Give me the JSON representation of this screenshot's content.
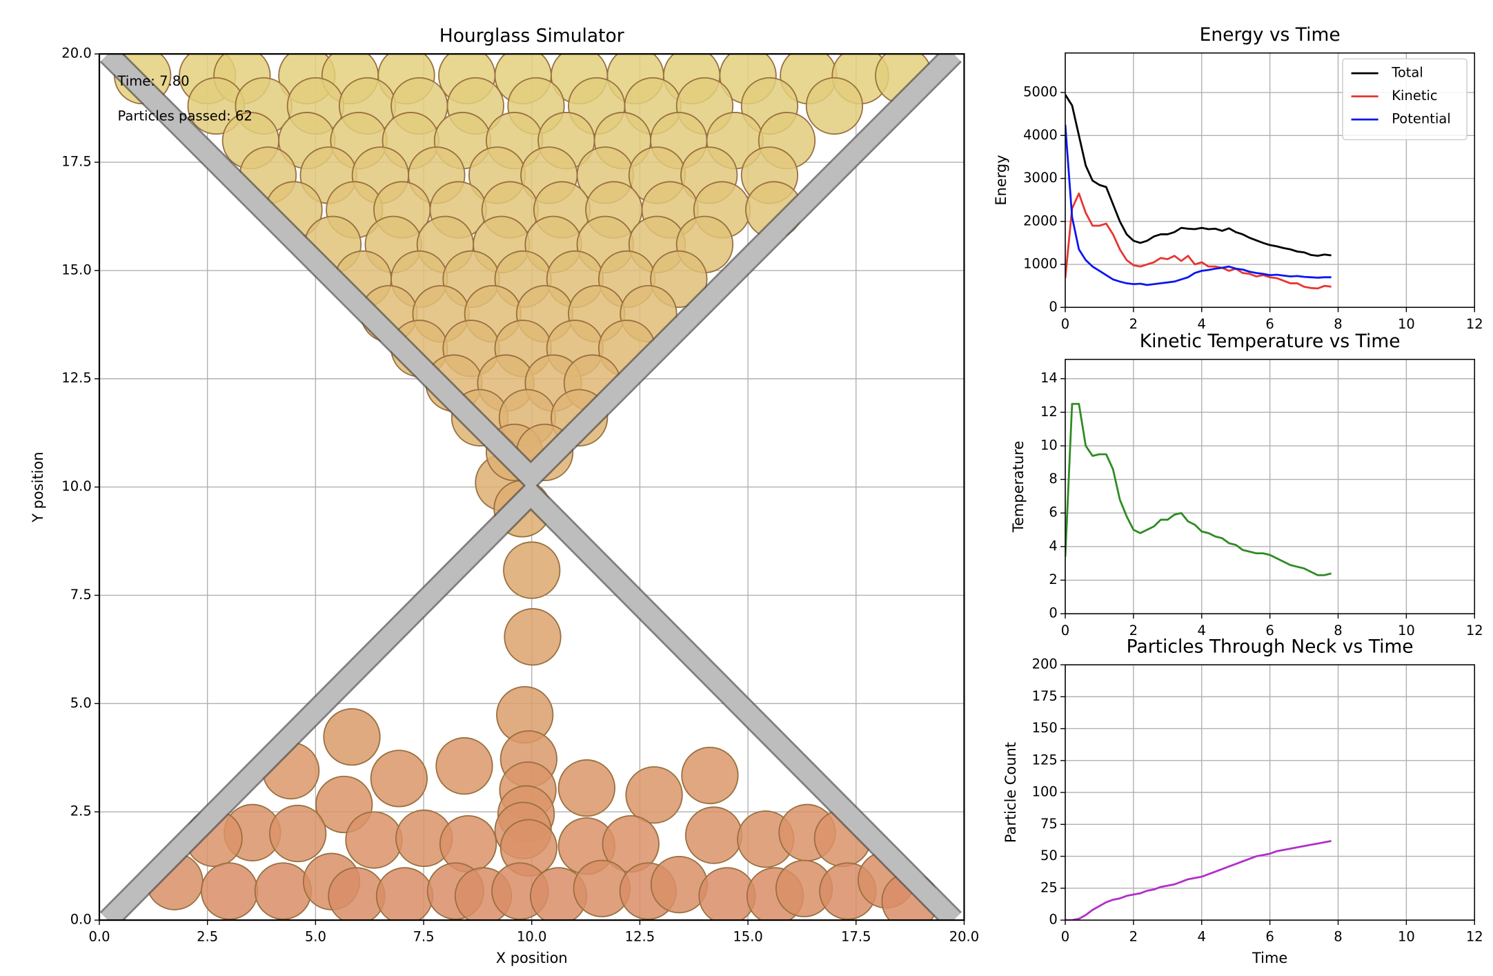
{
  "chart_data": [
    {
      "type": "scatter",
      "title": "Hourglass Simulator",
      "xlabel": "X position",
      "ylabel": "Y position",
      "annotations": [
        "Time: 7.80",
        "Particles passed: 62"
      ],
      "xlim": [
        0,
        20
      ],
      "ylim": [
        0,
        20
      ],
      "xticks": [
        {
          "value": 0,
          "label": "0.0"
        },
        2.5,
        {
          "value": 5,
          "label": "5.0"
        },
        7.5,
        {
          "value": 10,
          "label": "10.0"
        },
        12.5,
        {
          "value": 15,
          "label": "15.0"
        },
        17.5,
        {
          "value": 20,
          "label": "20.0"
        }
      ],
      "yticks": [
        {
          "value": 0,
          "label": "0.0"
        },
        2.5,
        {
          "value": 5,
          "label": "5.0"
        },
        7.5,
        {
          "value": 10,
          "label": "10.0"
        },
        12.5,
        {
          "value": 15,
          "label": "15.0"
        },
        17.5,
        {
          "value": 20,
          "label": "20.0"
        }
      ],
      "grid": true,
      "marker_radius": 0.65,
      "colormap": [
        "#d98c66",
        "#e3d27e"
      ],
      "edgecolor": "#9a7040",
      "x": [
        9.35,
        9.78,
        10.0,
        10.02,
        9.84,
        9.93,
        9.91,
        9.87,
        9.8,
        9.93,
        5.84,
        4.43,
        6.93,
        8.44,
        14.12,
        12.83,
        11.27,
        5.66,
        3.54,
        4.59,
        6.35,
        7.51,
        8.53,
        11.27,
        12.29,
        14.21,
        15.41,
        16.37,
        17.19,
        2.65,
        1.74,
        3.01,
        4.25,
        5.37,
        5.95,
        7.06,
        8.24,
        8.88,
        9.73,
        10.62,
        11.62,
        12.69,
        13.41,
        14.52,
        15.63,
        16.3,
        17.31,
        18.2,
        18.75,
        1.0,
        2.5,
        3.3,
        4.8,
        5.8,
        7.1,
        8.5,
        9.8,
        11.1,
        12.4,
        13.7,
        15.0,
        16.4,
        17.6,
        18.6,
        2.7,
        3.8,
        5.0,
        6.2,
        7.4,
        8.7,
        10.1,
        11.5,
        12.8,
        14.0,
        15.5,
        17.0,
        3.5,
        4.8,
        6.0,
        7.2,
        8.4,
        9.6,
        10.8,
        12.1,
        13.4,
        14.7,
        15.9,
        3.9,
        5.3,
        6.5,
        7.8,
        9.2,
        10.4,
        11.7,
        12.9,
        14.1,
        15.5,
        4.5,
        5.9,
        7.0,
        8.3,
        9.5,
        10.7,
        11.9,
        13.2,
        14.4,
        15.6,
        5.4,
        6.8,
        8.0,
        9.3,
        10.5,
        11.7,
        12.9,
        14.0,
        6.1,
        7.4,
        8.6,
        9.8,
        11.0,
        12.2,
        13.4,
        6.7,
        7.9,
        9.1,
        10.3,
        11.5,
        12.7,
        7.4,
        8.6,
        9.8,
        11.0,
        12.2,
        8.2,
        9.4,
        10.5,
        11.4,
        8.8,
        9.9,
        11.1,
        9.6,
        10.3
      ],
      "values": [
        10.1,
        9.5,
        8.08,
        6.54,
        4.74,
        3.72,
        3.0,
        2.45,
        2.07,
        1.67,
        4.23,
        3.45,
        3.27,
        3.56,
        3.34,
        2.89,
        3.05,
        2.67,
        2.02,
        2.0,
        1.85,
        1.89,
        1.76,
        1.71,
        1.76,
        1.96,
        1.87,
        2.02,
        1.89,
        1.89,
        0.89,
        0.67,
        0.67,
        0.89,
        0.56,
        0.56,
        0.67,
        0.56,
        0.67,
        0.56,
        0.73,
        0.67,
        0.82,
        0.56,
        0.56,
        0.73,
        0.67,
        0.93,
        0.44,
        19.5,
        19.5,
        19.5,
        19.5,
        19.5,
        19.5,
        19.5,
        19.5,
        19.5,
        19.5,
        19.5,
        19.5,
        19.5,
        19.5,
        19.5,
        18.8,
        18.8,
        18.8,
        18.8,
        18.8,
        18.8,
        18.8,
        18.8,
        18.8,
        18.8,
        18.8,
        18.8,
        18.0,
        18.0,
        18.0,
        18.0,
        18.0,
        18.0,
        18.0,
        18.0,
        18.0,
        18.0,
        18.0,
        17.2,
        17.2,
        17.2,
        17.2,
        17.2,
        17.2,
        17.2,
        17.2,
        17.2,
        17.2,
        16.4,
        16.4,
        16.4,
        16.4,
        16.4,
        16.4,
        16.4,
        16.4,
        16.4,
        16.4,
        15.6,
        15.6,
        15.6,
        15.6,
        15.6,
        15.6,
        15.6,
        15.6,
        14.8,
        14.8,
        14.8,
        14.8,
        14.8,
        14.8,
        14.8,
        14.0,
        14.0,
        14.0,
        14.0,
        14.0,
        14.0,
        13.2,
        13.2,
        13.2,
        13.2,
        13.2,
        12.4,
        12.4,
        12.4,
        12.4,
        11.6,
        11.6,
        11.6,
        10.8,
        10.8
      ]
    },
    {
      "type": "line",
      "title": "Energy vs Time",
      "ylabel": "Energy",
      "xlim": [
        0,
        12
      ],
      "ylim": [
        0,
        5920
      ],
      "xticks": [
        0,
        2,
        4,
        6,
        8,
        10,
        12
      ],
      "yticks": [
        0,
        1000,
        2000,
        3000,
        4000,
        5000
      ],
      "grid": true,
      "legend": "upper right",
      "x": [
        0,
        0.2,
        0.4,
        0.6,
        0.8,
        1,
        1.2,
        1.4,
        1.6,
        1.8,
        2,
        2.2,
        2.4,
        2.6,
        2.8,
        3,
        3.2,
        3.4,
        3.6,
        3.8,
        4,
        4.2,
        4.4,
        4.6,
        4.8,
        5,
        5.2,
        5.4,
        5.6,
        5.8,
        6,
        6.2,
        6.4,
        6.6,
        6.8,
        7,
        7.2,
        7.4,
        7.6,
        7.8
      ],
      "series": [
        {
          "name": "Total",
          "color": "#000000",
          "values": [
            4950,
            4700,
            4000,
            3300,
            2950,
            2850,
            2800,
            2400,
            2000,
            1700,
            1550,
            1500,
            1550,
            1650,
            1700,
            1700,
            1750,
            1850,
            1830,
            1820,
            1850,
            1820,
            1830,
            1780,
            1840,
            1750,
            1700,
            1620,
            1560,
            1500,
            1450,
            1420,
            1380,
            1350,
            1300,
            1280,
            1220,
            1200,
            1230,
            1210
          ]
        },
        {
          "name": "Kinetic",
          "color": "#e8352f",
          "values": [
            680,
            2300,
            2650,
            2200,
            1900,
            1900,
            1950,
            1700,
            1350,
            1100,
            980,
            950,
            1000,
            1050,
            1150,
            1120,
            1200,
            1080,
            1200,
            1000,
            1050,
            950,
            950,
            920,
            850,
            900,
            800,
            780,
            720,
            750,
            700,
            680,
            620,
            560,
            560,
            480,
            450,
            440,
            500,
            480
          ]
        },
        {
          "name": "Potential",
          "color": "#0a16f0",
          "values": [
            4250,
            2100,
            1350,
            1100,
            950,
            850,
            750,
            650,
            600,
            560,
            540,
            550,
            520,
            540,
            560,
            580,
            600,
            650,
            700,
            800,
            850,
            870,
            900,
            920,
            950,
            900,
            880,
            830,
            800,
            780,
            750,
            760,
            740,
            720,
            730,
            710,
            700,
            690,
            700,
            700
          ]
        }
      ]
    },
    {
      "type": "line",
      "title": "Kinetic Temperature vs Time",
      "ylabel": "Temperature",
      "xlim": [
        0,
        12
      ],
      "ylim": [
        0,
        15.15
      ],
      "xticks": [
        0,
        2,
        4,
        6,
        8,
        10,
        12
      ],
      "yticks": [
        0,
        2,
        4,
        6,
        8,
        10,
        12,
        14
      ],
      "grid": true,
      "x": [
        0,
        0.2,
        0.4,
        0.6,
        0.8,
        1,
        1.2,
        1.4,
        1.6,
        1.8,
        2,
        2.2,
        2.4,
        2.6,
        2.8,
        3,
        3.2,
        3.4,
        3.6,
        3.8,
        4,
        4.2,
        4.4,
        4.6,
        4.8,
        5,
        5.2,
        5.4,
        5.6,
        5.8,
        6,
        6.2,
        6.4,
        6.6,
        6.8,
        7,
        7.2,
        7.4,
        7.6,
        7.8
      ],
      "series": [
        {
          "color": "#2e8b22",
          "values": [
            3.4,
            12.5,
            12.5,
            10.0,
            9.4,
            9.5,
            9.5,
            8.6,
            6.8,
            5.8,
            5.0,
            4.8,
            5.0,
            5.2,
            5.6,
            5.6,
            5.9,
            6.0,
            5.5,
            5.3,
            4.9,
            4.8,
            4.6,
            4.5,
            4.2,
            4.1,
            3.8,
            3.7,
            3.6,
            3.6,
            3.5,
            3.3,
            3.1,
            2.9,
            2.8,
            2.7,
            2.5,
            2.3,
            2.3,
            2.4
          ]
        }
      ]
    },
    {
      "type": "line",
      "title": "Particles Through Neck vs Time",
      "xlabel": "Time",
      "ylabel": "Particle Count",
      "xlim": [
        0,
        12
      ],
      "ylim": [
        0,
        200
      ],
      "xticks": [
        0,
        2,
        4,
        6,
        8,
        10,
        12
      ],
      "yticks": [
        0,
        25,
        50,
        75,
        100,
        125,
        150,
        175,
        200
      ],
      "grid": true,
      "x": [
        0,
        0.2,
        0.4,
        0.6,
        0.8,
        1,
        1.2,
        1.4,
        1.6,
        1.8,
        2,
        2.2,
        2.4,
        2.6,
        2.8,
        3,
        3.2,
        3.4,
        3.6,
        3.8,
        4,
        4.2,
        4.4,
        4.6,
        4.8,
        5,
        5.2,
        5.4,
        5.6,
        5.8,
        6,
        6.2,
        6.4,
        6.6,
        6.8,
        7,
        7.2,
        7.4,
        7.6,
        7.8
      ],
      "series": [
        {
          "color": "#b22fc8",
          "values": [
            0,
            0,
            1,
            4,
            8,
            11,
            14,
            16,
            17,
            19,
            20,
            21,
            23,
            24,
            26,
            27,
            28,
            30,
            32,
            33,
            34,
            36,
            38,
            40,
            42,
            44,
            46,
            48,
            50,
            51,
            52,
            54,
            55,
            56,
            57,
            58,
            59,
            60,
            61,
            62
          ]
        }
      ]
    }
  ]
}
